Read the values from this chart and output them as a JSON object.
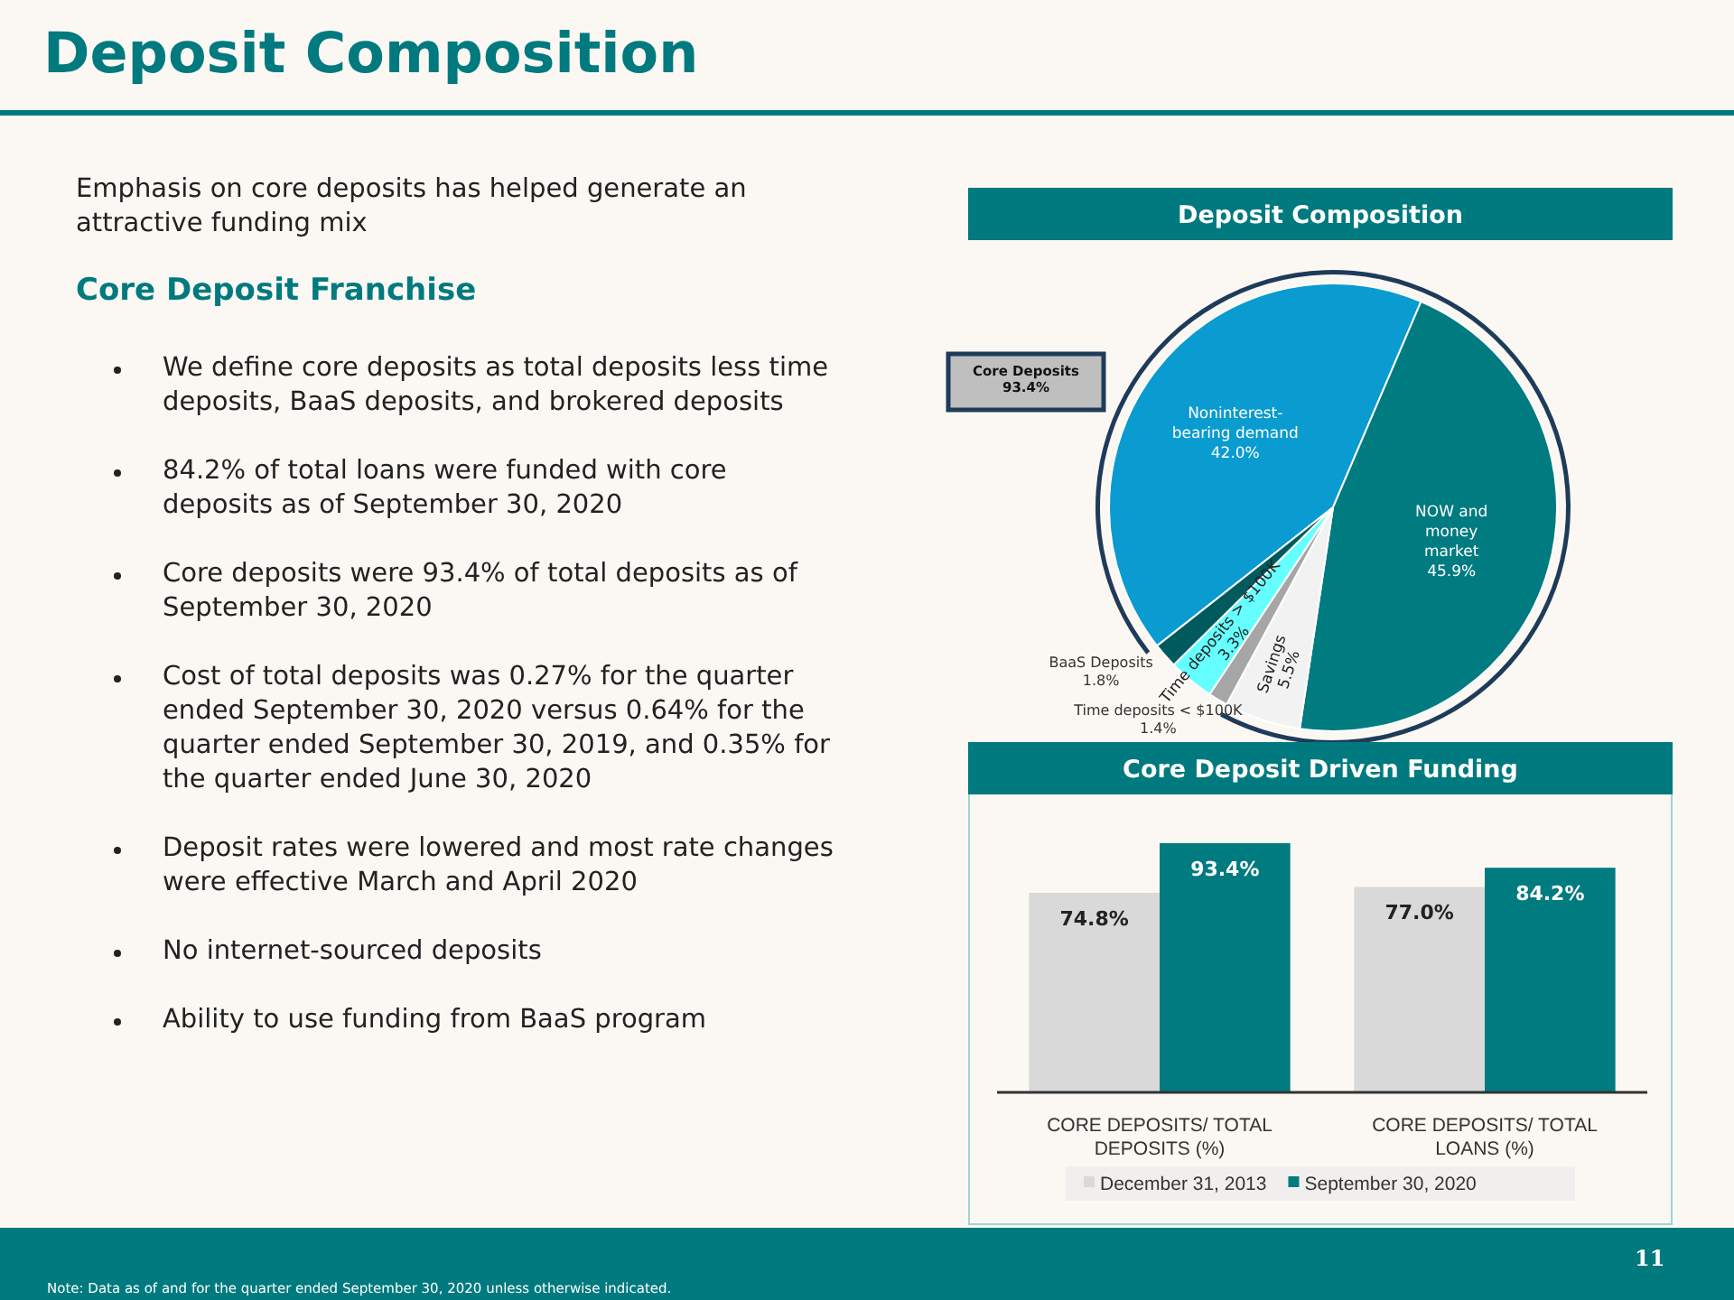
{
  "chart_data": [
    {
      "type": "other",
      "title": "Deposit Composition",
      "subtitle": "Emphasis on core deposits has helped generate an attractive funding mix",
      "annotations": [
        "Core Deposit Franchise",
        "We define core deposits as total deposits less time deposits, BaaS deposits, and brokered deposits",
        "84.2% of total loans were funded with core deposits as of September 30, 2020",
        "Core deposits were 93.4% of total deposits as of September 30, 2020",
        "Cost of total deposits was 0.27% for the quarter ended September 30, 2020 versus 0.64% for the quarter ended September 30, 2019, and 0.35% for the quarter ended June 30, 2020",
        "Deposit rates were lowered and most rate changes were effective March and April 2020",
        "No internet-sourced deposits",
        "Ability to use funding from BaaS program",
        "Note: Data as of and for the quarter ended September 30, 2020 unless otherwise indicated.",
        "11"
      ]
    },
    {
      "type": "pie",
      "title": "Deposit Composition",
      "categories": [
        "Noninterest-bearing demand",
        "NOW and money market",
        "Savings",
        "Time deposits < $100K",
        "Time deposits > $100K",
        "BaaS Deposits"
      ],
      "values": [
        42.0,
        45.9,
        5.5,
        1.4,
        3.3,
        1.8
      ],
      "colors": [
        "#0a9bd0",
        "#007b80",
        "#f2f2f2",
        "#a6a6a6",
        "#66ffff",
        "#005a5e"
      ],
      "value_labels": [
        "42.0%",
        "45.9%",
        "5.5%",
        "1.4%",
        "3.3%",
        "1.8%"
      ],
      "annotations": [
        "Core Deposits 93.4%"
      ]
    },
    {
      "type": "bar",
      "title": "Core Deposit Driven Funding",
      "categories": [
        "CORE DEPOSITS/ TOTAL DEPOSITS (%)",
        "CORE DEPOSITS/ TOTAL LOANS (%)"
      ],
      "series": [
        {
          "name": "December 31, 2013",
          "color": "#d9d9d9",
          "values": [
            74.8,
            77.0
          ],
          "value_labels": [
            "74.8%",
            "77.0%"
          ]
        },
        {
          "name": "September 30, 2020",
          "color": "#007b80",
          "values": [
            93.4,
            84.2
          ],
          "value_labels": [
            "93.4%",
            "84.2%"
          ]
        }
      ],
      "legend": "bottom"
    }
  ]
}
